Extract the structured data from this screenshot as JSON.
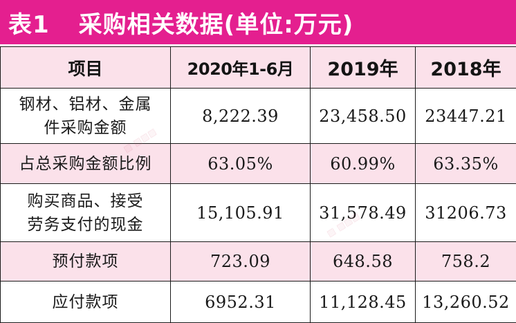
{
  "title": {
    "label": "表1",
    "text": "采购相关数据(单位:万元)"
  },
  "colors": {
    "title_bg": "#e41f8f",
    "pink_row": "#fbe1ea",
    "title_text": "#ffffff"
  },
  "table": {
    "headers": [
      "项目",
      "2020年1-6月",
      "2019年",
      "2018年"
    ],
    "rows": [
      {
        "label_line1": "钢材、铝材、金属",
        "label_line2": "件采购金额",
        "values": [
          "8,222.39",
          "23,458.50",
          "23447.21"
        ]
      },
      {
        "label_line1": "占总采购金额比例",
        "label_line2": "",
        "values": [
          "63.05%",
          "60.99%",
          "63.35%"
        ]
      },
      {
        "label_line1": "购买商品、接受",
        "label_line2": "劳务支付的现金",
        "values": [
          "15,105.91",
          "31,578.49",
          "31206.73"
        ]
      },
      {
        "label_line1": "预付款项",
        "label_line2": "",
        "values": [
          "723.09",
          "648.58",
          "758.2"
        ]
      },
      {
        "label_line1": "应付款项",
        "label_line2": "",
        "values": [
          "6952.31",
          "11,128.45",
          "13,260.52"
        ]
      }
    ]
  }
}
